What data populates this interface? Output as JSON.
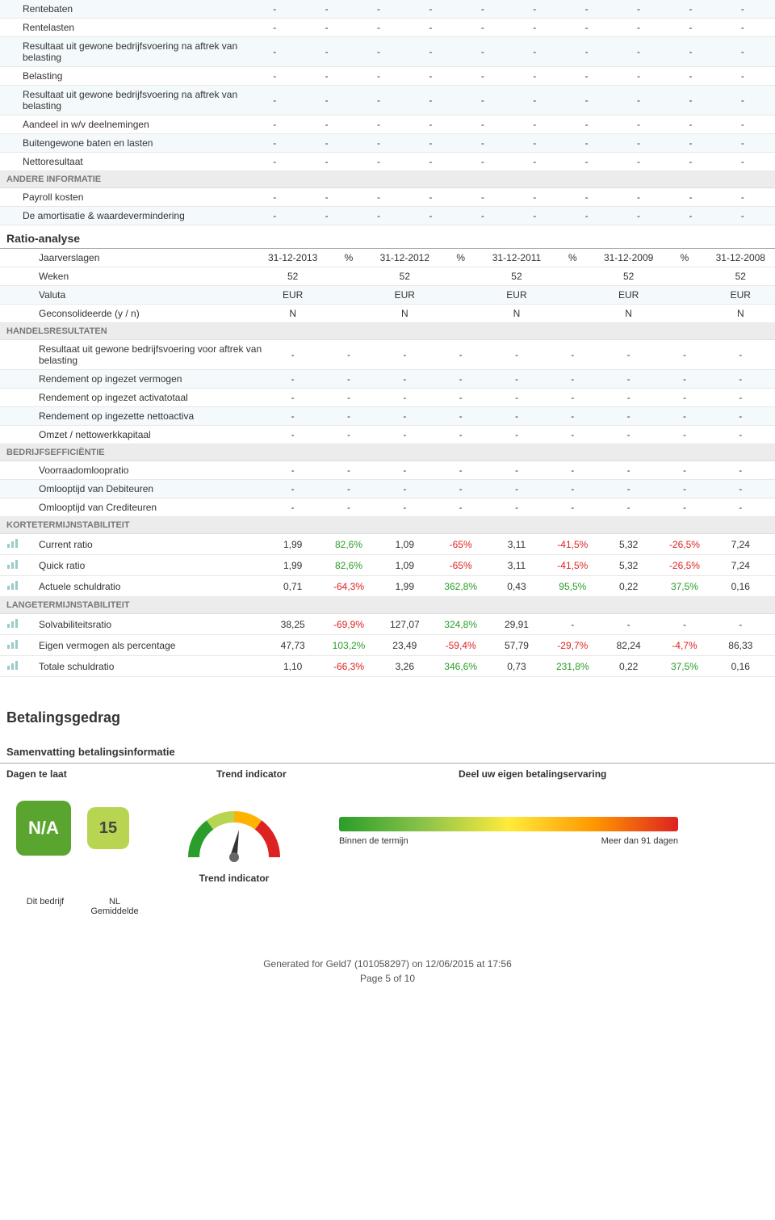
{
  "topTable": {
    "rows": [
      {
        "label": "Rentebaten",
        "vals": [
          "-",
          "-",
          "-",
          "-",
          "-",
          "-",
          "-",
          "-",
          "-",
          "-"
        ]
      },
      {
        "label": "Rentelasten",
        "vals": [
          "-",
          "-",
          "-",
          "-",
          "-",
          "-",
          "-",
          "-",
          "-",
          "-"
        ]
      },
      {
        "label": "Resultaat uit gewone bedrijfsvoering na aftrek van belasting",
        "vals": [
          "-",
          "-",
          "-",
          "-",
          "-",
          "-",
          "-",
          "-",
          "-",
          "-"
        ]
      },
      {
        "label": "Belasting",
        "vals": [
          "-",
          "-",
          "-",
          "-",
          "-",
          "-",
          "-",
          "-",
          "-",
          "-"
        ]
      },
      {
        "label": "Resultaat uit gewone bedrijfsvoering na aftrek van belasting",
        "vals": [
          "-",
          "-",
          "-",
          "-",
          "-",
          "-",
          "-",
          "-",
          "-",
          "-"
        ]
      },
      {
        "label": "Aandeel in w/v deelnemingen",
        "vals": [
          "-",
          "-",
          "-",
          "-",
          "-",
          "-",
          "-",
          "-",
          "-",
          "-"
        ]
      },
      {
        "label": "Buitengewone baten en lasten",
        "vals": [
          "-",
          "-",
          "-",
          "-",
          "-",
          "-",
          "-",
          "-",
          "-",
          "-"
        ]
      },
      {
        "label": "Nettoresultaat",
        "vals": [
          "-",
          "-",
          "-",
          "-",
          "-",
          "-",
          "-",
          "-",
          "-",
          "-"
        ]
      }
    ],
    "cat": "ANDERE INFORMATIE",
    "rows2": [
      {
        "label": "Payroll kosten",
        "vals": [
          "-",
          "-",
          "-",
          "-",
          "-",
          "-",
          "-",
          "-",
          "-",
          "-"
        ]
      },
      {
        "label": "De amortisatie & waardevermindering",
        "vals": [
          "-",
          "-",
          "-",
          "-",
          "-",
          "-",
          "-",
          "-",
          "-",
          "-"
        ]
      }
    ]
  },
  "ratio": {
    "title": "Ratio-analyse",
    "header": {
      "label": "Jaarverslagen",
      "cols": [
        "31-12-2013",
        "%",
        "31-12-2012",
        "%",
        "31-12-2011",
        "%",
        "31-12-2009",
        "%",
        "31-12-2008"
      ]
    },
    "meta": [
      {
        "label": "Weken",
        "vals": [
          "52",
          "",
          "52",
          "",
          "52",
          "",
          "52",
          "",
          "52"
        ]
      },
      {
        "label": "Valuta",
        "vals": [
          "EUR",
          "",
          "EUR",
          "",
          "EUR",
          "",
          "EUR",
          "",
          "EUR"
        ]
      },
      {
        "label": "Geconsolideerde (y / n)",
        "vals": [
          "N",
          "",
          "N",
          "",
          "N",
          "",
          "N",
          "",
          "N"
        ]
      }
    ],
    "cat1": "HANDELSRESULTATEN",
    "hr": [
      {
        "label": "Resultaat uit gewone bedrijfsvoering voor aftrek van belasting",
        "vals": [
          "-",
          "-",
          "-",
          "-",
          "-",
          "-",
          "-",
          "-",
          "-"
        ]
      },
      {
        "label": "Rendement op ingezet vermogen",
        "vals": [
          "-",
          "-",
          "-",
          "-",
          "-",
          "-",
          "-",
          "-",
          "-"
        ]
      },
      {
        "label": "Rendement op ingezet activatotaal",
        "vals": [
          "-",
          "-",
          "-",
          "-",
          "-",
          "-",
          "-",
          "-",
          "-"
        ]
      },
      {
        "label": "Rendement op ingezette nettoactiva",
        "vals": [
          "-",
          "-",
          "-",
          "-",
          "-",
          "-",
          "-",
          "-",
          "-"
        ]
      },
      {
        "label": "Omzet / nettowerkkapitaal",
        "vals": [
          "-",
          "-",
          "-",
          "-",
          "-",
          "-",
          "-",
          "-",
          "-"
        ]
      }
    ],
    "cat2": "BEDRIJFSEFFICIËNTIE",
    "be": [
      {
        "label": "Voorraadomloopratio",
        "vals": [
          "-",
          "-",
          "-",
          "-",
          "-",
          "-",
          "-",
          "-",
          "-"
        ]
      },
      {
        "label": "Omlooptijd van Debiteuren",
        "vals": [
          "-",
          "-",
          "-",
          "-",
          "-",
          "-",
          "-",
          "-",
          "-"
        ]
      },
      {
        "label": "Omlooptijd van Crediteuren",
        "vals": [
          "-",
          "-",
          "-",
          "-",
          "-",
          "-",
          "-",
          "-",
          "-"
        ]
      }
    ],
    "cat3": "KORTETERMIJNSTABILITEIT",
    "ks": [
      {
        "label": "Current ratio",
        "vals": [
          "1,99",
          "82,6%",
          "1,09",
          "-65%",
          "3,11",
          "-41,5%",
          "5,32",
          "-26,5%",
          "7,24"
        ],
        "colors": [
          "",
          "green",
          "",
          "red",
          "",
          "red",
          "",
          "red",
          ""
        ]
      },
      {
        "label": "Quick ratio",
        "vals": [
          "1,99",
          "82,6%",
          "1,09",
          "-65%",
          "3,11",
          "-41,5%",
          "5,32",
          "-26,5%",
          "7,24"
        ],
        "colors": [
          "",
          "green",
          "",
          "red",
          "",
          "red",
          "",
          "red",
          ""
        ]
      },
      {
        "label": "Actuele schuldratio",
        "vals": [
          "0,71",
          "-64,3%",
          "1,99",
          "362,8%",
          "0,43",
          "95,5%",
          "0,22",
          "37,5%",
          "0,16"
        ],
        "colors": [
          "",
          "red",
          "",
          "green",
          "",
          "green",
          "",
          "green",
          ""
        ]
      }
    ],
    "cat4": "LANGETERMIJNSTABILITEIT",
    "ls": [
      {
        "label": "Solvabiliteitsratio",
        "vals": [
          "38,25",
          "-69,9%",
          "127,07",
          "324,8%",
          "29,91",
          "-",
          "-",
          "-",
          "-"
        ],
        "colors": [
          "",
          "red",
          "",
          "green",
          "",
          "",
          "",
          "",
          ""
        ]
      },
      {
        "label": "Eigen vermogen als percentage",
        "vals": [
          "47,73",
          "103,2%",
          "23,49",
          "-59,4%",
          "57,79",
          "-29,7%",
          "82,24",
          "-4,7%",
          "86,33"
        ],
        "colors": [
          "",
          "green",
          "",
          "red",
          "",
          "red",
          "",
          "red",
          ""
        ]
      },
      {
        "label": "Totale schuldratio",
        "vals": [
          "1,10",
          "-66,3%",
          "3,26",
          "346,6%",
          "0,73",
          "231,8%",
          "0,22",
          "37,5%",
          "0,16"
        ],
        "colors": [
          "",
          "red",
          "",
          "green",
          "",
          "green",
          "",
          "green",
          ""
        ]
      }
    ]
  },
  "pay": {
    "title": "Betalingsgedrag",
    "subtitle": "Samenvatting betalingsinformatie",
    "cols": [
      "Dagen te laat",
      "Trend indicator",
      "Deel uw eigen betalingservaring"
    ],
    "badge1": "N/A",
    "badge2": "15",
    "gaugeLabel": "Trend indicator",
    "gradLeft": "Binnen de termijn",
    "gradRight": "Meer dan 91 dagen",
    "bl1": "Dit bedrijf",
    "bl2": "NL Gemiddelde"
  },
  "footer": {
    "l1": "Generated for Geld7 (101058297) on 12/06/2015 at 17:56",
    "l2": "Page 5 of 10"
  },
  "colors": {
    "green": "#2a9d2a",
    "red": "#d22"
  }
}
